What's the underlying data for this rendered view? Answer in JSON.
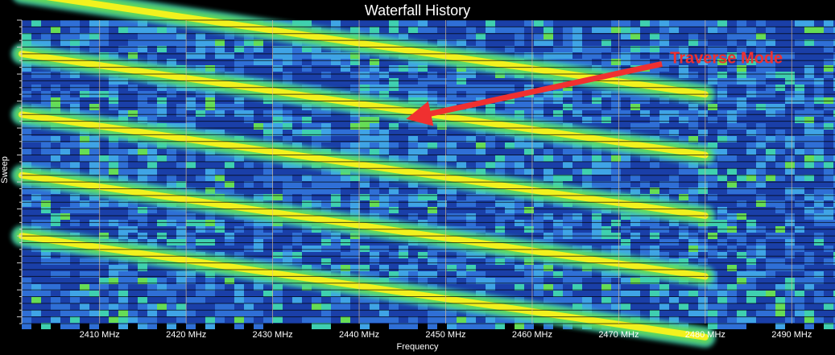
{
  "chart_data": {
    "type": "heatmap",
    "title": "Waterfall History",
    "xlabel": "Frequency",
    "ylabel": "Sweep",
    "x_unit": "MHz",
    "xlim": [
      2401,
      2495
    ],
    "x_ticks": [
      2410,
      2420,
      2430,
      2440,
      2450,
      2460,
      2470,
      2480,
      2490
    ],
    "x_tick_labels": [
      "2410 MHz",
      "2420 MHz",
      "2430 MHz",
      "2440 MHz",
      "2450 MHz",
      "2460 MHz",
      "2470 MHz",
      "2480 MHz",
      "2490 MHz"
    ],
    "sweep_count": 90,
    "colormap": [
      "#1a3fa8",
      "#2f6fd6",
      "#3fa4e6",
      "#3fd0b0",
      "#66dd55",
      "#c8ea3a",
      "#f2f21e"
    ],
    "diagonal_sweep_tracks": [
      {
        "sweep_start": -8,
        "sweep_end": 22,
        "freq_start": 2401,
        "freq_end": 2480
      },
      {
        "sweep_start": 10,
        "sweep_end": 40,
        "freq_start": 2401,
        "freq_end": 2480
      },
      {
        "sweep_start": 28,
        "sweep_end": 58,
        "freq_start": 2401,
        "freq_end": 2480
      },
      {
        "sweep_start": 46,
        "sweep_end": 76,
        "freq_start": 2401,
        "freq_end": 2480
      },
      {
        "sweep_start": 64,
        "sweep_end": 94,
        "freq_start": 2401,
        "freq_end": 2480
      }
    ],
    "annotations": [
      {
        "text": "Traverse Mode",
        "color": "#f03030",
        "arrow_from": [
          2475,
          13
        ],
        "arrow_to": [
          2446,
          29
        ]
      }
    ]
  }
}
